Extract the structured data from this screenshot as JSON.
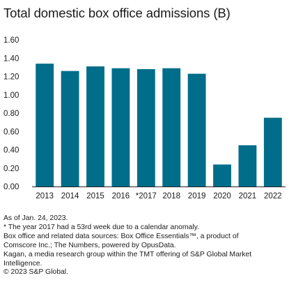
{
  "chart_data": {
    "type": "bar",
    "title": "Total domestic box office admissions (B)",
    "categories": [
      "2013",
      "2014",
      "2015",
      "2016",
      "*2017",
      "2018",
      "2019",
      "2020",
      "2021",
      "2022"
    ],
    "values": [
      1.34,
      1.26,
      1.31,
      1.29,
      1.28,
      1.29,
      1.23,
      0.24,
      0.45,
      0.75
    ],
    "ylim": [
      0,
      1.6
    ],
    "yticks": [
      "0.00",
      "0.20",
      "0.40",
      "0.60",
      "0.80",
      "1.00",
      "1.20",
      "1.40",
      "1.60"
    ],
    "xlabel": "",
    "ylabel": "",
    "grid": false,
    "bar_color": "#006d8a"
  },
  "footnotes": [
    "As of Jan. 24, 2023.",
    "* The year 2017 had a 53rd week due to a calendar anomaly.",
    "Box office and related data sources: Box Office Essentials™, a product of",
    "Comscore Inc.; The Numbers, powered by OpusData.",
    "Kagan, a media research group within the TMT offering of S&P Global Market",
    "Intelligence.",
    "© 2023 S&P Global."
  ]
}
